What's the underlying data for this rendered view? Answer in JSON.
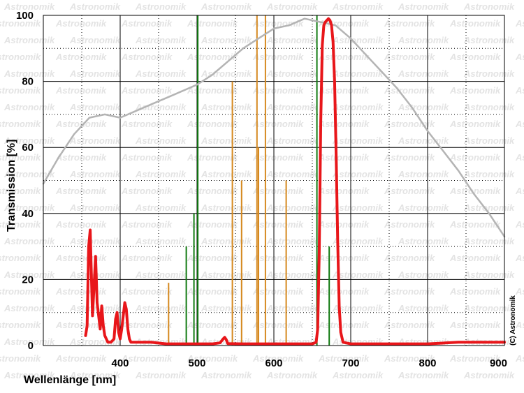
{
  "chart_data": {
    "type": "line",
    "title": "",
    "xlabel": "Wellenlänge [nm]",
    "ylabel": "Transmission [%]",
    "xlim": [
      300,
      900
    ],
    "ylim": [
      0,
      100
    ],
    "xticks": [
      400,
      500,
      600,
      700,
      800,
      900
    ],
    "yticks": [
      0,
      20,
      40,
      60,
      80,
      100
    ],
    "grid": true,
    "credit": "(C) Astronomik",
    "watermark": "Astronomik",
    "colors": {
      "filter": "#e8161a",
      "sensor": "#b4b4b4",
      "sodium_lines": "#d6891f",
      "emission_lines": "#127a12",
      "grid_major": "#000000",
      "grid_minor": "#000000"
    },
    "series": [
      {
        "key": "sensor",
        "x": [
          300,
          320,
          340,
          360,
          380,
          400,
          420,
          440,
          460,
          480,
          500,
          520,
          540,
          560,
          580,
          600,
          620,
          640,
          660,
          680,
          700,
          720,
          740,
          760,
          780,
          800,
          820,
          840,
          860,
          880,
          900
        ],
        "y": [
          49,
          57,
          64,
          69,
          70,
          69,
          71,
          73,
          75,
          77,
          79,
          82,
          86,
          90,
          93,
          96,
          97,
          99,
          98,
          97,
          93,
          88,
          83,
          78,
          72,
          65,
          59,
          53,
          46,
          40,
          33
        ]
      },
      {
        "key": "filter",
        "x": [
          355,
          357,
          359,
          361,
          362,
          364,
          366,
          368,
          370,
          372,
          374,
          376,
          378,
          380,
          384,
          388,
          392,
          394,
          396,
          398,
          400,
          402,
          404,
          406,
          408,
          410,
          412,
          414,
          420,
          440,
          460,
          480,
          500,
          520,
          530,
          534,
          536,
          538,
          540,
          560,
          580,
          600,
          620,
          640,
          650,
          655,
          657,
          659,
          661,
          663,
          665,
          667,
          669,
          671,
          673,
          675,
          677,
          679,
          681,
          683,
          685,
          687,
          690,
          700,
          750,
          800,
          840,
          870,
          900
        ],
        "y": [
          3,
          6,
          30,
          35,
          26,
          9,
          18,
          27,
          13,
          9,
          5,
          12,
          6,
          3,
          1,
          1,
          2,
          8,
          10,
          4,
          2,
          5,
          9,
          13,
          11,
          5,
          2,
          1,
          1,
          1,
          0.5,
          0.5,
          0.5,
          0.5,
          0.8,
          2,
          2.5,
          1.8,
          0.6,
          0.5,
          0.5,
          0.5,
          0.5,
          0.5,
          0.5,
          1,
          5,
          28,
          68,
          91,
          97,
          98,
          98.5,
          99,
          98.5,
          97,
          92,
          80,
          58,
          32,
          12,
          4,
          1,
          0.5,
          0.5,
          0.5,
          1,
          1,
          1
        ]
      }
    ],
    "lines": [
      {
        "key": "sodium_lines",
        "x": 463,
        "y": 19
      },
      {
        "key": "emission_lines",
        "x": 486,
        "y": 30
      },
      {
        "key": "emission_lines",
        "x": 496,
        "y": 40
      },
      {
        "key": "emission_lines",
        "x": 501,
        "y": 100
      },
      {
        "key": "sodium_lines",
        "x": 546,
        "y": 80
      },
      {
        "key": "sodium_lines",
        "x": 558,
        "y": 50
      },
      {
        "key": "sodium_lines",
        "x": 578,
        "y": 100
      },
      {
        "key": "sodium_lines",
        "x": 580,
        "y": 60
      },
      {
        "key": "sodium_lines",
        "x": 589,
        "y": 100
      },
      {
        "key": "sodium_lines",
        "x": 616,
        "y": 50
      },
      {
        "key": "emission_lines",
        "x": 656,
        "y": 100
      },
      {
        "key": "emission_lines",
        "x": 672,
        "y": 30
      }
    ]
  }
}
